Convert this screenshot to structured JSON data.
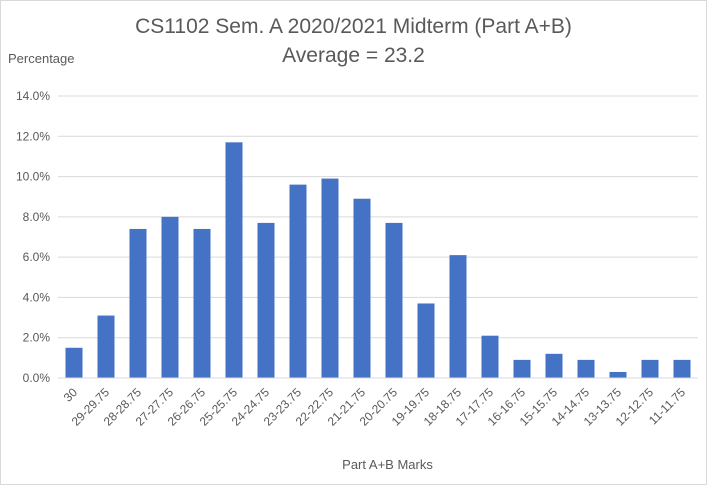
{
  "chart_data": {
    "type": "bar",
    "title": "CS1102 Sem. A 2020/2021 Midterm (Part A+B)",
    "subtitle": "Average = 23.2",
    "ylabel": "Percentage",
    "xlabel": "Part A+B Marks",
    "ylim": [
      0,
      14
    ],
    "yticks": [
      "0.0%",
      "2.0%",
      "4.0%",
      "6.0%",
      "8.0%",
      "10.0%",
      "12.0%",
      "14.0%"
    ],
    "ytick_values": [
      0,
      2,
      4,
      6,
      8,
      10,
      12,
      14
    ],
    "grid": true,
    "legend": "none",
    "bar_color": "#4472c4",
    "grid_color": "#d9d9d9",
    "categories": [
      "30",
      "29-29.75",
      "28-28.75",
      "27-27.75",
      "26-26.75",
      "25-25.75",
      "24-24.75",
      "23-23.75",
      "22-22.75",
      "21-21.75",
      "20-20.75",
      "19-19.75",
      "18-18.75",
      "17-17.75",
      "16-16.75",
      "15-15.75",
      "14-14.75",
      "13-13.75",
      "12-12.75",
      "11-11.75"
    ],
    "values": [
      1.5,
      3.1,
      7.4,
      8.0,
      7.4,
      11.7,
      7.7,
      9.6,
      9.9,
      8.9,
      7.7,
      3.7,
      6.1,
      2.1,
      0.9,
      1.2,
      0.9,
      0.3,
      0.9,
      0.9
    ]
  }
}
